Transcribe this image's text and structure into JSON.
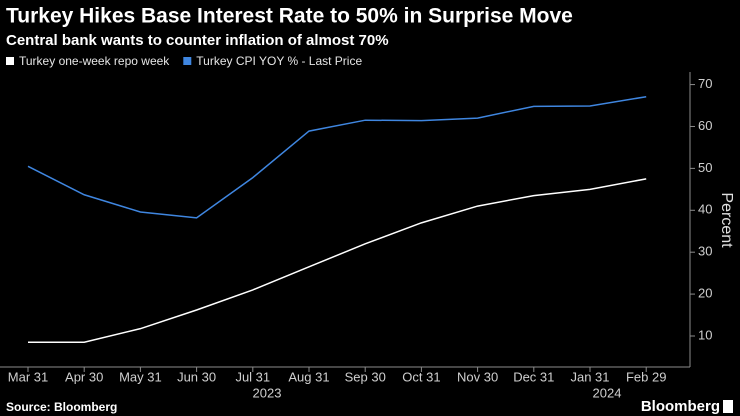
{
  "chart_data": {
    "type": "line",
    "title": "Turkey Hikes Base Interest Rate to 50% in Surprise Move",
    "subtitle": "Central bank wants to counter inflation of almost 70%",
    "categories": [
      "Mar 31",
      "Apr 30",
      "May 31",
      "Jun 30",
      "Jul 31",
      "Aug 31",
      "Sep 30",
      "Oct 31",
      "Nov 30",
      "Dec 31",
      "Jan 31",
      "Feb 29"
    ],
    "year_labels": [
      "2023",
      "2024"
    ],
    "series": [
      {
        "name": "Turkey one-week repo week",
        "color": "#ffffff",
        "values": [
          8.5,
          8.5,
          11.75,
          16.2,
          21,
          26.5,
          32,
          37,
          41,
          43.5,
          45,
          47.5
        ]
      },
      {
        "name": "Turkey CPI YOY % - Last Price",
        "color": "#3f86e0",
        "values": [
          50.5,
          43.7,
          39.6,
          38.2,
          47.8,
          58.9,
          61.5,
          61.4,
          62,
          64.8,
          64.9,
          67.1
        ]
      }
    ],
    "y_axis_label": "Percent",
    "ylim": [
      2.6,
      73
    ],
    "yticks": [
      10,
      20,
      30,
      40,
      50,
      60,
      70
    ],
    "grid": false,
    "source": "Source: Bloomberg",
    "brand": "Bloomberg"
  }
}
